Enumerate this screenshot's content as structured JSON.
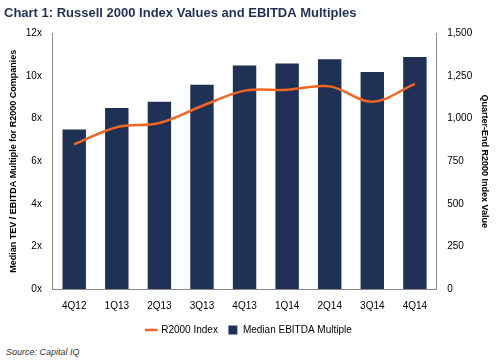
{
  "chart_data": {
    "type": "bar",
    "title": "Chart 1: Russell 2000 Index Values and EBITDA Multiples",
    "source": "Source: Capital IQ",
    "y_label": "Median TEV / EBITDA Multiple for R2000 Companies",
    "y2_label": "Quarter-End R2000 Index Value",
    "categories": [
      "4Q12",
      "1Q13",
      "2Q13",
      "3Q13",
      "4Q13",
      "1Q14",
      "2Q14",
      "3Q14",
      "4Q14"
    ],
    "series": [
      {
        "name": "Median EBITDA Multiple",
        "type": "bar",
        "color": "#1f3154",
        "values": [
          7.5,
          8.5,
          8.8,
          9.6,
          10.5,
          10.6,
          10.8,
          10.2,
          10.9
        ]
      },
      {
        "name": "R2000 Index",
        "type": "line",
        "color": "#f26522",
        "axis": "y2",
        "values": [
          850,
          950,
          975,
          1075,
          1165,
          1170,
          1190,
          1100,
          1205
        ]
      }
    ],
    "ylim": [
      0,
      12
    ],
    "yticks": [
      {
        "value": 0,
        "label": "0x"
      },
      {
        "value": 2,
        "label": "2x"
      },
      {
        "value": 4,
        "label": "4x"
      },
      {
        "value": 6,
        "label": "6x"
      },
      {
        "value": 8,
        "label": "8x"
      },
      {
        "value": 10,
        "label": "10x"
      },
      {
        "value": 12,
        "label": "12x"
      }
    ],
    "y2lim": [
      0,
      1500
    ],
    "y2ticks": [
      0,
      250,
      500,
      750,
      {
        "value": 1000,
        "label": "1,000"
      },
      {
        "value": 1250,
        "label": "1,250"
      },
      {
        "value": 1500,
        "label": "1,500"
      }
    ],
    "grid": false,
    "legend": "bottom"
  }
}
